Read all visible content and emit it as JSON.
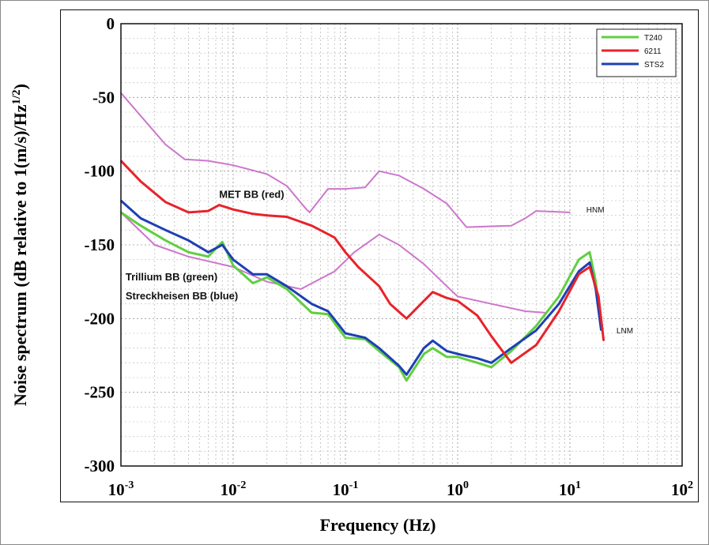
{
  "chart_data": {
    "type": "line",
    "xscale": "log",
    "xlim": [
      0.001,
      100
    ],
    "ylim": [
      -300,
      0
    ],
    "grid": true,
    "xlabel": "Frequency (Hz)",
    "ylabel_parts": [
      "Noise spectrum (dB relative to 1(m/s)/Hz",
      "1/2",
      ")"
    ],
    "xticks": [
      {
        "base": "10",
        "exp": "-3",
        "value": 0.001
      },
      {
        "base": "10",
        "exp": "-2",
        "value": 0.01
      },
      {
        "base": "10",
        "exp": "-1",
        "value": 0.1
      },
      {
        "base": "10",
        "exp": "0",
        "value": 1
      },
      {
        "base": "10",
        "exp": "1",
        "value": 10
      },
      {
        "base": "10",
        "exp": "2",
        "value": 100
      }
    ],
    "yticks": [
      "0",
      "-50",
      "-100",
      "-150",
      "-200",
      "-250",
      "-300"
    ],
    "legend_position": "top-right",
    "legend": [
      {
        "label": "T240",
        "color": "#5fcf3f"
      },
      {
        "label": "6211",
        "color": "#e8232a"
      },
      {
        "label": "STS2",
        "color": "#1e3fb5"
      }
    ],
    "annotations": [
      {
        "text": "MET BB (red)",
        "x": 0.0075,
        "y": -118
      },
      {
        "text": "Trillium BB (green)",
        "x": 0.0011,
        "y": -174
      },
      {
        "text": "Streckheisen BB (blue)",
        "x": 0.0011,
        "y": -187
      },
      {
        "text": "HNM",
        "x": 14,
        "y": -128
      },
      {
        "text": "LNM",
        "x": 26,
        "y": -210
      }
    ],
    "series": [
      {
        "name": "HNM",
        "color": "#cc77cc",
        "x": [
          0.001,
          0.0016,
          0.0025,
          0.0037,
          0.006,
          0.01,
          0.02,
          0.03,
          0.045,
          0.048,
          0.07,
          0.1,
          0.15,
          0.2,
          0.3,
          0.5,
          0.8,
          1.2,
          3,
          4,
          5,
          10
        ],
        "y": [
          -47,
          -65,
          -82,
          -92,
          -93,
          -96,
          -102,
          -110,
          -126,
          -128,
          -112,
          -112,
          -111,
          -100,
          -103,
          -112,
          -122,
          -138,
          -137,
          -132,
          -127,
          -128
        ]
      },
      {
        "name": "LNM",
        "color": "#cc77cc",
        "x": [
          0.001,
          0.002,
          0.004,
          0.01,
          0.02,
          0.04,
          0.08,
          0.12,
          0.2,
          0.3,
          0.5,
          0.8,
          1.0,
          2.0,
          4.0,
          6.0
        ],
        "y": [
          -128,
          -150,
          -158,
          -165,
          -175,
          -180,
          -168,
          -155,
          -143,
          -150,
          -163,
          -178,
          -185,
          -190,
          -195,
          -196
        ]
      },
      {
        "name": "MET BB (red)",
        "color": "#e8232a",
        "x": [
          0.001,
          0.0015,
          0.0025,
          0.004,
          0.006,
          0.0075,
          0.01,
          0.015,
          0.02,
          0.03,
          0.05,
          0.08,
          0.1,
          0.13,
          0.2,
          0.25,
          0.35,
          0.5,
          0.6,
          0.8,
          1.0,
          1.5,
          2.0,
          3.0,
          5.0,
          8.0,
          12,
          15,
          18,
          20
        ],
        "y": [
          -93,
          -107,
          -121,
          -128,
          -127,
          -123,
          -126,
          -129,
          -130,
          -131,
          -137,
          -145,
          -155,
          -165,
          -178,
          -190,
          -200,
          -188,
          -182,
          -186,
          -188,
          -198,
          -212,
          -230,
          -218,
          -195,
          -170,
          -165,
          -185,
          -215
        ]
      },
      {
        "name": "T240",
        "color": "#5fcf3f",
        "x": [
          0.001,
          0.0015,
          0.0025,
          0.004,
          0.006,
          0.008,
          0.01,
          0.015,
          0.02,
          0.03,
          0.05,
          0.07,
          0.1,
          0.15,
          0.2,
          0.3,
          0.35,
          0.5,
          0.6,
          0.8,
          1.0,
          1.5,
          2.0,
          3.0,
          5.0,
          8.0,
          12,
          15,
          17,
          19
        ],
        "y": [
          -128,
          -137,
          -147,
          -155,
          -158,
          -148,
          -164,
          -176,
          -172,
          -180,
          -196,
          -197,
          -213,
          -214,
          -222,
          -233,
          -242,
          -224,
          -220,
          -226,
          -226,
          -230,
          -233,
          -222,
          -205,
          -185,
          -160,
          -155,
          -175,
          -205
        ]
      },
      {
        "name": "STS2",
        "color": "#1e3fb5",
        "x": [
          0.001,
          0.0015,
          0.0025,
          0.004,
          0.006,
          0.008,
          0.01,
          0.015,
          0.02,
          0.03,
          0.05,
          0.07,
          0.1,
          0.15,
          0.2,
          0.3,
          0.35,
          0.5,
          0.6,
          0.8,
          1.0,
          1.5,
          2.0,
          3.0,
          5.0,
          8.0,
          12,
          15,
          17,
          19
        ],
        "y": [
          -120,
          -132,
          -140,
          -147,
          -155,
          -150,
          -160,
          -170,
          -170,
          -178,
          -190,
          -195,
          -210,
          -213,
          -220,
          -232,
          -238,
          -220,
          -215,
          -222,
          -224,
          -227,
          -230,
          -220,
          -208,
          -190,
          -168,
          -162,
          -180,
          -208
        ]
      }
    ]
  }
}
